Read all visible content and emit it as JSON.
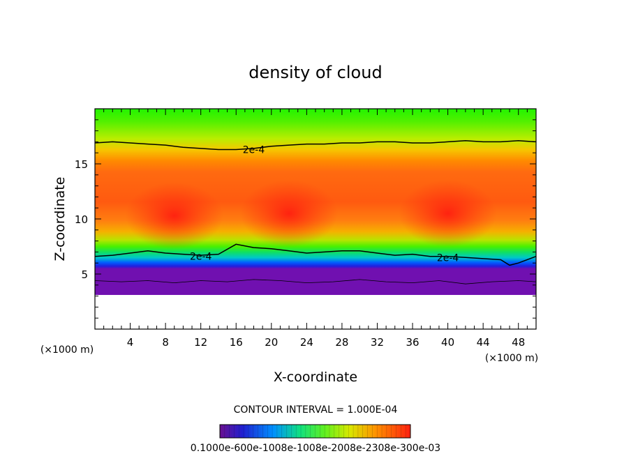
{
  "chart_data": {
    "type": "heatmap",
    "title": "density of cloud",
    "xlabel": "X-coordinate",
    "ylabel": "Z-coordinate",
    "x_unit": "(×1000 m)",
    "xlim": [
      0,
      50
    ],
    "ylim": [
      0,
      20
    ],
    "x_ticks": [
      4,
      8,
      12,
      16,
      20,
      24,
      28,
      32,
      36,
      40,
      44,
      48
    ],
    "y_ticks": [
      5,
      10,
      15
    ],
    "cloud_base_z": 3.1,
    "contour_label": "2e-4",
    "contour_interval_text": "CONTOUR INTERVAL = 1.000E-04",
    "colorbar_labels": "0.1000e-600e-1008e-1008e-2008e-2308e-300e-03",
    "upper_contour": {
      "x": [
        0,
        2,
        4,
        6,
        8,
        10,
        12,
        14,
        16,
        18,
        20,
        22,
        24,
        26,
        28,
        30,
        32,
        34,
        36,
        38,
        40,
        42,
        44,
        46,
        48,
        50
      ],
      "z": [
        16.9,
        17.0,
        16.9,
        16.8,
        16.7,
        16.5,
        16.4,
        16.3,
        16.3,
        16.4,
        16.6,
        16.7,
        16.8,
        16.8,
        16.9,
        16.9,
        17.0,
        17.0,
        16.9,
        16.9,
        17.0,
        17.1,
        17.0,
        17.0,
        17.1,
        17.0
      ]
    },
    "lower_contour": {
      "x": [
        0,
        2,
        4,
        6,
        8,
        10,
        12,
        14,
        16,
        18,
        20,
        22,
        24,
        26,
        28,
        30,
        32,
        34,
        36,
        38,
        40,
        42,
        44,
        46,
        47,
        48,
        50
      ],
      "z": [
        6.6,
        6.7,
        6.9,
        7.1,
        6.9,
        6.8,
        6.7,
        6.8,
        7.7,
        7.4,
        7.3,
        7.1,
        6.9,
        7.0,
        7.1,
        7.1,
        6.9,
        6.7,
        6.8,
        6.6,
        6.6,
        6.5,
        6.4,
        6.3,
        5.8,
        6.0,
        6.6
      ]
    },
    "inner_contour": {
      "x": [
        0,
        3,
        6,
        9,
        12,
        15,
        18,
        21,
        24,
        27,
        30,
        33,
        36,
        39,
        42,
        45,
        48,
        50
      ],
      "z": [
        4.4,
        4.3,
        4.4,
        4.2,
        4.4,
        4.3,
        4.5,
        4.4,
        4.2,
        4.3,
        4.5,
        4.3,
        4.2,
        4.4,
        4.1,
        4.3,
        4.4,
        4.3
      ]
    },
    "max_centers": [
      {
        "x": 9,
        "z": 10.3,
        "value": 0.0031
      },
      {
        "x": 22,
        "z": 10.5,
        "value": 0.003
      },
      {
        "x": 40,
        "z": 10.5,
        "value": 0.0034
      }
    ]
  }
}
